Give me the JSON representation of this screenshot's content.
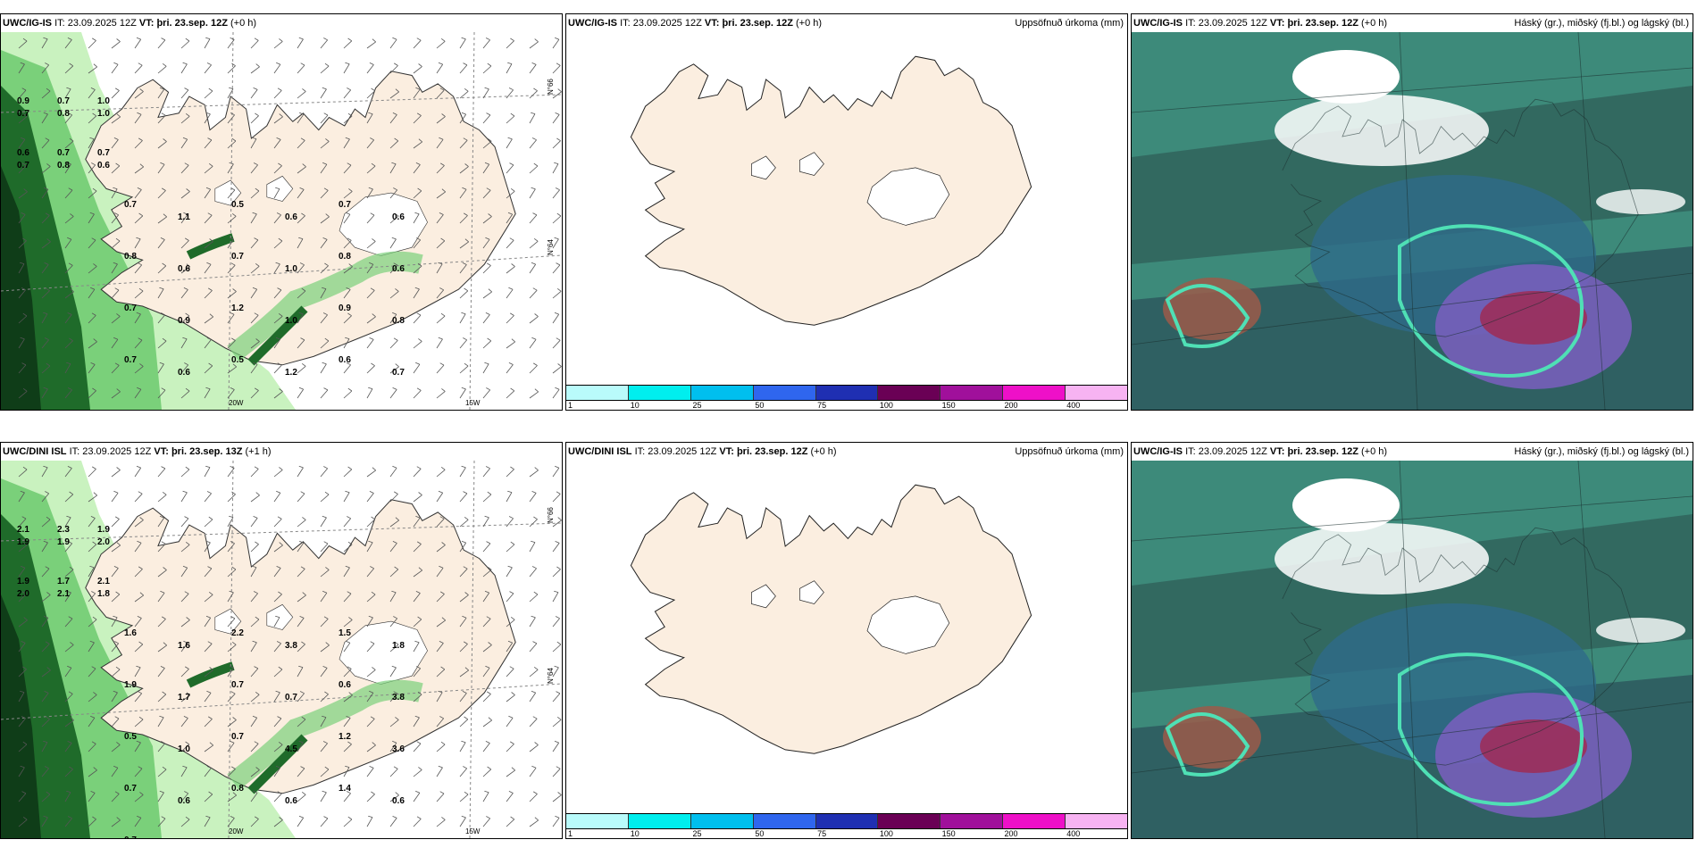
{
  "panels": [
    {
      "model": "UWC/IG-IS",
      "it_label": "IT:",
      "it_value": "23.09.2025 12Z",
      "vt_label": "VT:",
      "vt_value": "þri. 23.sep. 12Z",
      "lead": "(+0 h)",
      "right_title": "",
      "type": "wind-precip",
      "values": [
        "0.9",
        "0.8",
        "1.0",
        "0.7",
        "0.7",
        "1.0",
        "0.6",
        "0.8",
        "0.7",
        "0.7",
        "0.7",
        "0.6",
        "0.7",
        "1.1",
        "0.5",
        "0.6",
        "0.7",
        "0.6",
        "0.8",
        "0.6",
        "0.7",
        "1.0",
        "0.8",
        "0.6",
        "0.7",
        "0.9",
        "1.2",
        "1.0",
        "0.9",
        "0.8",
        "0.7",
        "0.6",
        "0.5",
        "1.2",
        "0.6",
        "0.7"
      ],
      "lon_labels": [
        "20W",
        "15W"
      ],
      "lat_labels": [
        "N°66",
        "N°64"
      ]
    },
    {
      "model": "UWC/IG-IS",
      "it_label": "IT:",
      "it_value": "23.09.2025 12Z",
      "vt_label": "VT:",
      "vt_value": "þri. 23.sep. 12Z",
      "lead": "(+0 h)",
      "right_title": "Uppsöfnuð úrkoma (mm)",
      "type": "accum-precip",
      "colorbar": {
        "colors": [
          "#b9fbfb",
          "#00eeee",
          "#00bfee",
          "#2f66ee",
          "#1f2fb2",
          "#6a0055",
          "#a0109b",
          "#ee10c8",
          "#f7b3f2"
        ],
        "ticks": [
          "1",
          "10",
          "25",
          "50",
          "75",
          "100",
          "150",
          "200",
          "400"
        ]
      }
    },
    {
      "model": "UWC/IG-IS",
      "it_label": "IT:",
      "it_value": "23.09.2025 12Z",
      "vt_label": "VT:",
      "vt_value": "þri. 23.sep. 12Z",
      "lead": "(+0 h)",
      "right_title": "Háský (gr.), miðský (fj.bl.) og lágský (bl.)",
      "type": "clouds"
    },
    {
      "model": "UWC/DINI ISL",
      "it_label": "IT:",
      "it_value": "23.09.2025 12Z",
      "vt_label": "VT:",
      "vt_value": "þri. 23.sep. 13Z",
      "lead": "(+1 h)",
      "right_title": "",
      "type": "wind-precip",
      "values": [
        "2.1",
        "1.9",
        "1.9",
        "1.9",
        "2.3",
        "2.0",
        "1.9",
        "2.1",
        "2.1",
        "2.0",
        "1.7",
        "1.8",
        "1.6",
        "1.6",
        "2.2",
        "3.8",
        "1.5",
        "1.8",
        "1.9",
        "1.7",
        "0.7",
        "0.7",
        "0.6",
        "3.8",
        "0.5",
        "1.0",
        "0.7",
        "4.5",
        "1.2",
        "3.6",
        "0.7",
        "0.6",
        "0.8",
        "0.6",
        "1.4",
        "0.6",
        "0.7",
        "0.8"
      ],
      "lon_labels": [
        "20W",
        "15W"
      ],
      "lat_labels": [
        "N°66",
        "N°64"
      ]
    },
    {
      "model": "UWC/DINI ISL",
      "it_label": "IT:",
      "it_value": "23.09.2025 12Z",
      "vt_label": "VT:",
      "vt_value": "þri. 23.sep. 12Z",
      "lead": "(+0 h)",
      "right_title": "Uppsöfnuð úrkoma (mm)",
      "type": "accum-precip",
      "colorbar": {
        "colors": [
          "#b9fbfb",
          "#00eeee",
          "#00bfee",
          "#2f66ee",
          "#1f2fb2",
          "#6a0055",
          "#a0109b",
          "#ee10c8",
          "#f7b3f2"
        ],
        "ticks": [
          "1",
          "10",
          "25",
          "50",
          "75",
          "100",
          "150",
          "200",
          "400"
        ]
      }
    },
    {
      "model": "UWC/IG-IS",
      "it_label": "IT:",
      "it_value": "23.09.2025 12Z",
      "vt_label": "VT:",
      "vt_value": "þri. 23.sep. 12Z",
      "lead": "(+0 h)",
      "right_title": "Háský (gr.), miðský (fj.bl.) og lágský (bl.)",
      "type": "clouds"
    }
  ],
  "colors": {
    "land": "#fbeee0",
    "glacier": "#ffffff",
    "precip_light": "#c9f2bf",
    "precip_mid": "#7ad07a",
    "precip_dark": "#1f6b2a",
    "precip_darkest": "#0f3d18",
    "cloud_low": "#2f5e58",
    "cloud_mid": "#3d8a7a",
    "cloud_high": "#5aa590"
  }
}
